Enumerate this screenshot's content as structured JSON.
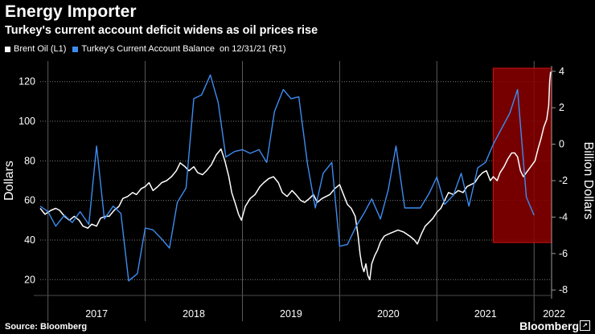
{
  "header": {
    "title": "Energy Importer",
    "subtitle": "Turkey's current account deficit widens as oil prices rise"
  },
  "legend": {
    "items": [
      {
        "label": "Brent Oil  (L1)",
        "color": "#ffffff"
      },
      {
        "label": "Turkey's Current Account Balance",
        "color": "#3d8cf0"
      }
    ],
    "extra": "on 12/31/21 (R1)"
  },
  "footer": {
    "source": "Source: Bloomberg",
    "brand": "Bloomberg",
    "brand_badge": "↗"
  },
  "chart_data": {
    "type": "line",
    "title": "Energy Importer",
    "subtitle": "Turkey's current account deficit widens as oil prices rise",
    "ylabel_left": "Dollars",
    "ylabel_right": "Billion Dollars",
    "x_ticks": [
      "2017",
      "2018",
      "2019",
      "2020",
      "2021",
      "2022"
    ],
    "x_range": [
      2016.92,
      2022.18
    ],
    "ylim_left": [
      12,
      128
    ],
    "yticks_left": [
      20,
      40,
      60,
      80,
      100,
      120
    ],
    "ylim_right": [
      -8.3,
      4.3
    ],
    "yticks_right": [
      -8,
      -6,
      -4,
      -2,
      0,
      2,
      4
    ],
    "grid": true,
    "highlight": {
      "x_start": 2021.58,
      "x_end": 2022.18,
      "color": "#8b0000"
    },
    "series": [
      {
        "name": "Brent Oil",
        "axis": "left",
        "color": "#ffffff",
        "points": [
          [
            2016.92,
            56
          ],
          [
            2016.97,
            53
          ],
          [
            2017.03,
            55
          ],
          [
            2017.08,
            56
          ],
          [
            2017.12,
            55
          ],
          [
            2017.17,
            52
          ],
          [
            2017.22,
            50
          ],
          [
            2017.27,
            52
          ],
          [
            2017.32,
            50
          ],
          [
            2017.36,
            47
          ],
          [
            2017.41,
            46
          ],
          [
            2017.45,
            48
          ],
          [
            2017.5,
            47
          ],
          [
            2017.54,
            51
          ],
          [
            2017.59,
            52
          ],
          [
            2017.63,
            52
          ],
          [
            2017.68,
            55
          ],
          [
            2017.73,
            57
          ],
          [
            2017.77,
            61
          ],
          [
            2017.82,
            62
          ],
          [
            2017.87,
            64
          ],
          [
            2017.91,
            63
          ],
          [
            2017.96,
            66
          ],
          [
            2018.0,
            67
          ],
          [
            2018.04,
            69
          ],
          [
            2018.08,
            65
          ],
          [
            2018.13,
            67
          ],
          [
            2018.17,
            69
          ],
          [
            2018.22,
            70
          ],
          [
            2018.27,
            72
          ],
          [
            2018.32,
            75
          ],
          [
            2018.36,
            79
          ],
          [
            2018.41,
            77
          ],
          [
            2018.45,
            75
          ],
          [
            2018.5,
            77
          ],
          [
            2018.54,
            74
          ],
          [
            2018.59,
            73
          ],
          [
            2018.63,
            75
          ],
          [
            2018.68,
            78
          ],
          [
            2018.73,
            83
          ],
          [
            2018.78,
            86
          ],
          [
            2018.82,
            80
          ],
          [
            2018.86,
            72
          ],
          [
            2018.89,
            64
          ],
          [
            2018.93,
            58
          ],
          [
            2018.96,
            53
          ],
          [
            2018.99,
            50
          ],
          [
            2019.03,
            57
          ],
          [
            2019.08,
            61
          ],
          [
            2019.13,
            63
          ],
          [
            2019.18,
            67
          ],
          [
            2019.22,
            69
          ],
          [
            2019.27,
            71
          ],
          [
            2019.32,
            72
          ],
          [
            2019.37,
            69
          ],
          [
            2019.41,
            64
          ],
          [
            2019.46,
            62
          ],
          [
            2019.51,
            65
          ],
          [
            2019.55,
            63
          ],
          [
            2019.6,
            60
          ],
          [
            2019.64,
            59
          ],
          [
            2019.69,
            61
          ],
          [
            2019.73,
            63
          ],
          [
            2019.77,
            59
          ],
          [
            2019.82,
            61
          ],
          [
            2019.86,
            62
          ],
          [
            2019.9,
            63
          ],
          [
            2019.95,
            66
          ],
          [
            2020.0,
            68
          ],
          [
            2020.04,
            63
          ],
          [
            2020.08,
            58
          ],
          [
            2020.12,
            56
          ],
          [
            2020.16,
            52
          ],
          [
            2020.19,
            42
          ],
          [
            2020.21,
            33
          ],
          [
            2020.23,
            27
          ],
          [
            2020.25,
            24
          ],
          [
            2020.27,
            28
          ],
          [
            2020.29,
            22
          ],
          [
            2020.31,
            20
          ],
          [
            2020.33,
            28
          ],
          [
            2020.36,
            32
          ],
          [
            2020.39,
            35
          ],
          [
            2020.42,
            39
          ],
          [
            2020.46,
            42
          ],
          [
            2020.5,
            43
          ],
          [
            2020.55,
            44
          ],
          [
            2020.6,
            45
          ],
          [
            2020.66,
            44
          ],
          [
            2020.72,
            42
          ],
          [
            2020.77,
            40
          ],
          [
            2020.8,
            38
          ],
          [
            2020.84,
            43
          ],
          [
            2020.88,
            47
          ],
          [
            2020.92,
            49
          ],
          [
            2020.96,
            51
          ],
          [
            2021.0,
            54
          ],
          [
            2021.04,
            56
          ],
          [
            2021.08,
            60
          ],
          [
            2021.12,
            64
          ],
          [
            2021.17,
            63
          ],
          [
            2021.22,
            65
          ],
          [
            2021.27,
            64
          ],
          [
            2021.31,
            67
          ],
          [
            2021.35,
            68
          ],
          [
            2021.39,
            69
          ],
          [
            2021.43,
            72
          ],
          [
            2021.47,
            74
          ],
          [
            2021.51,
            75
          ],
          [
            2021.55,
            70
          ],
          [
            2021.58,
            72
          ],
          [
            2021.62,
            70
          ],
          [
            2021.65,
            74
          ],
          [
            2021.69,
            77
          ],
          [
            2021.73,
            81
          ],
          [
            2021.77,
            84
          ],
          [
            2021.8,
            84
          ],
          [
            2021.83,
            82
          ],
          [
            2021.86,
            75
          ],
          [
            2021.89,
            72
          ],
          [
            2021.92,
            74
          ],
          [
            2021.95,
            76
          ],
          [
            2021.98,
            78
          ],
          [
            2022.01,
            80
          ],
          [
            2022.04,
            86
          ],
          [
            2022.07,
            91
          ],
          [
            2022.1,
            97
          ],
          [
            2022.13,
            101
          ],
          [
            2022.15,
            108
          ],
          [
            2022.16,
            120
          ],
          [
            2022.17,
            125
          ]
        ]
      },
      {
        "name": "Turkey's Current Account Balance",
        "axis": "right",
        "color": "#3d8cf0",
        "points": [
          [
            2016.92,
            -3.4
          ],
          [
            2017.0,
            -3.7
          ],
          [
            2017.08,
            -4.5
          ],
          [
            2017.17,
            -3.9
          ],
          [
            2017.25,
            -4.3
          ],
          [
            2017.33,
            -3.7
          ],
          [
            2017.42,
            -4.4
          ],
          [
            2017.5,
            -0.1
          ],
          [
            2017.58,
            -4.1
          ],
          [
            2017.67,
            -3.4
          ],
          [
            2017.75,
            -3.8
          ],
          [
            2017.83,
            -7.5
          ],
          [
            2017.92,
            -7.1
          ],
          [
            2018.0,
            -4.6
          ],
          [
            2018.08,
            -4.7
          ],
          [
            2018.17,
            -5.2
          ],
          [
            2018.25,
            -5.7
          ],
          [
            2018.33,
            -3.2
          ],
          [
            2018.42,
            -2.4
          ],
          [
            2018.5,
            2.5
          ],
          [
            2018.58,
            2.7
          ],
          [
            2018.67,
            3.8
          ],
          [
            2018.75,
            2.3
          ],
          [
            2018.83,
            -0.7
          ],
          [
            2018.92,
            -0.4
          ],
          [
            2019.0,
            -0.3
          ],
          [
            2019.08,
            -0.5
          ],
          [
            2019.17,
            -0.3
          ],
          [
            2019.25,
            -1.0
          ],
          [
            2019.33,
            1.8
          ],
          [
            2019.42,
            3.0
          ],
          [
            2019.5,
            2.5
          ],
          [
            2019.58,
            2.6
          ],
          [
            2019.67,
            -1.1
          ],
          [
            2019.75,
            -3.5
          ],
          [
            2019.83,
            -1.6
          ],
          [
            2019.92,
            -1.0
          ],
          [
            2020.0,
            -5.6
          ],
          [
            2020.08,
            -5.5
          ],
          [
            2020.17,
            -4.5
          ],
          [
            2020.25,
            -3.8
          ],
          [
            2020.33,
            -3.0
          ],
          [
            2020.42,
            -4.1
          ],
          [
            2020.5,
            -2.5
          ],
          [
            2020.58,
            -0.1
          ],
          [
            2020.67,
            -3.5
          ],
          [
            2020.75,
            -3.5
          ],
          [
            2020.83,
            -3.5
          ],
          [
            2020.92,
            -2.7
          ],
          [
            2021.0,
            -1.8
          ],
          [
            2021.08,
            -3.3
          ],
          [
            2021.17,
            -2.8
          ],
          [
            2021.25,
            -1.6
          ],
          [
            2021.33,
            -3.4
          ],
          [
            2021.42,
            -1.3
          ],
          [
            2021.5,
            -1.0
          ],
          [
            2021.58,
            0.0
          ],
          [
            2021.67,
            0.9
          ],
          [
            2021.75,
            1.7
          ],
          [
            2021.83,
            3.0
          ],
          [
            2021.92,
            -2.9
          ],
          [
            2022.0,
            -3.9
          ]
        ]
      }
    ]
  }
}
